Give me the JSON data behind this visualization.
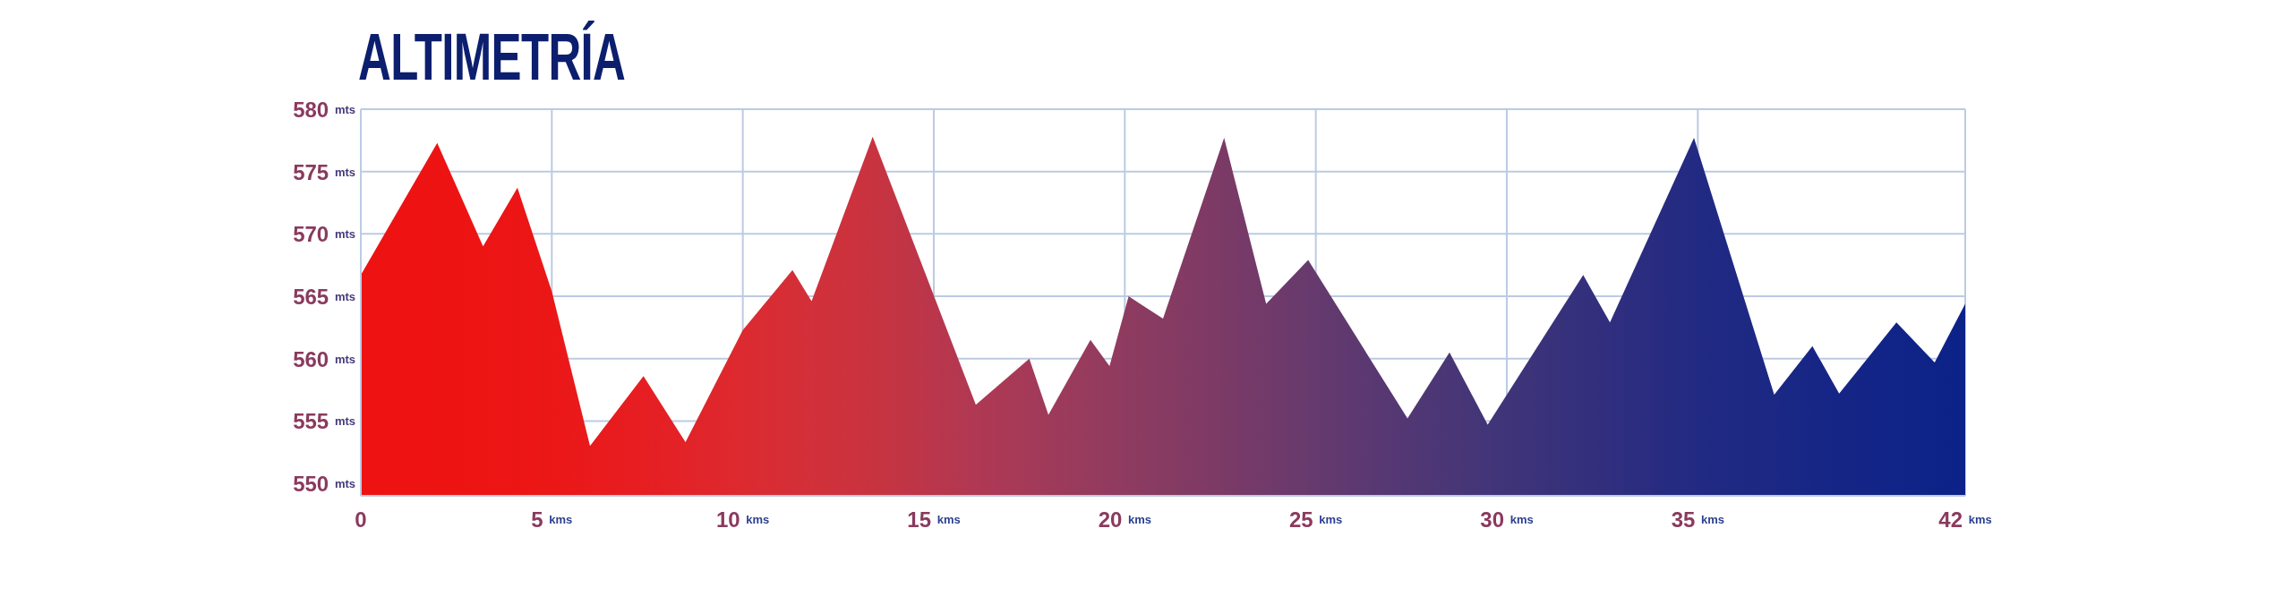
{
  "chart_data": {
    "type": "area",
    "title": "ALTIMETRÍA",
    "x": [
      0,
      2.0,
      3.2,
      4.1,
      5.0,
      6.0,
      7.4,
      8.5,
      10.0,
      11.3,
      11.8,
      13.4,
      16.1,
      17.5,
      18.0,
      19.1,
      19.6,
      20.1,
      21.0,
      22.6,
      23.7,
      24.8,
      27.4,
      28.5,
      29.5,
      32.0,
      32.7,
      34.9,
      37.0,
      38.0,
      38.7,
      40.2,
      41.2,
      42.0
    ],
    "values": [
      566.7,
      577.3,
      569.0,
      573.7,
      565.4,
      553.0,
      558.6,
      553.3,
      562.3,
      567.1,
      564.6,
      577.8,
      556.3,
      560.0,
      555.5,
      561.5,
      559.4,
      565.0,
      563.2,
      577.7,
      564.4,
      567.9,
      555.2,
      560.5,
      554.7,
      566.7,
      562.9,
      577.7,
      557.1,
      561.0,
      557.2,
      562.9,
      559.7,
      564.4
    ],
    "colors": [
      "#ee1212",
      "#ee1313",
      "#ed1414",
      "#ec1515",
      "#eb1717",
      "#e91a1c",
      "#e61e22",
      "#e22328",
      "#dc2a30",
      "#d52e37",
      "#d2303a",
      "#c8333f",
      "#b03853",
      "#a43a58",
      "#9f3a5a",
      "#963b5d",
      "#923b5f",
      "#8e3b60",
      "#873b62",
      "#7b3a66",
      "#713a6a",
      "#673a6d",
      "#523774",
      "#4a3676",
      "#423578",
      "#34307c",
      "#302e7e",
      "#222a82",
      "#1b2884",
      "#172685",
      "#152586",
      "#112487",
      "#0e2388",
      "#0c2288"
    ],
    "xlim": [
      0,
      42
    ],
    "xticks": [
      0,
      {
        "value": 5,
        "label": "5 kms"
      },
      {
        "value": 10,
        "label": "10 kms"
      },
      {
        "value": 15,
        "label": "15 kms"
      },
      {
        "value": 20,
        "label": "20 kms"
      },
      {
        "value": 25,
        "label": "25 kms"
      },
      {
        "value": 30,
        "label": "30 kms"
      },
      {
        "value": 35,
        "label": "35 kms"
      },
      {
        "value": 42,
        "label": "42 kms"
      }
    ],
    "ylim": [
      549,
      580
    ],
    "yticks": [
      {
        "value": 550,
        "label": "550 mts"
      },
      {
        "value": 555,
        "label": "555 mts"
      },
      {
        "value": 560,
        "label": "560 mts"
      },
      {
        "value": 565,
        "label": "565 mts"
      },
      {
        "value": 570,
        "label": "570 mts"
      },
      {
        "value": 575,
        "label": "575 mts"
      },
      {
        "value": 580,
        "label": "580 mts"
      }
    ],
    "grid": true
  }
}
